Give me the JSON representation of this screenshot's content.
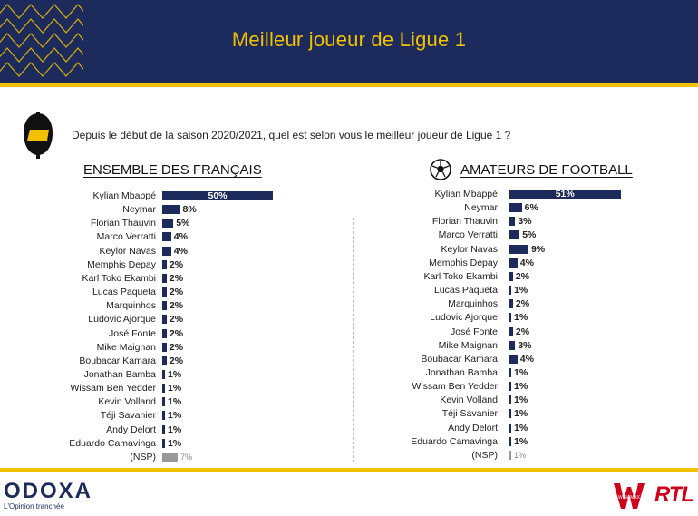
{
  "header": {
    "title": "Meilleur joueur de Ligue 1"
  },
  "question": "Depuis le début de la saison 2020/2021, quel est selon vous le meilleur joueur de Ligue 1 ?",
  "footer": {
    "brand": "ODOXA",
    "tagline": "L'Opinion tranchée",
    "partner1": "WINAMAX",
    "partner2": "RTL"
  },
  "colors": {
    "navy": "#1d2a5c",
    "yellow": "#f2c200",
    "nsp_gray": "#999999",
    "rtl_red": "#d0021b"
  },
  "chart_data": [
    {
      "type": "bar",
      "orientation": "horizontal",
      "title": "ENSEMBLE DES FRANÇAIS",
      "categories": [
        "Kylian Mbappé",
        "Neymar",
        "Florian Thauvin",
        "Marco Verratti",
        "Keylor Navas",
        "Memphis Depay",
        "Karl Toko Ekambi",
        "Lucas Paqueta",
        "Marquinhos",
        "Ludovic Ajorque",
        "José Fonte",
        "Mike Maignan",
        "Boubacar Kamara",
        "Jonathan Bamba",
        "Wissam Ben Yedder",
        "Kevin Volland",
        "Téji Savanier",
        "Andy Delort",
        "Eduardo Camavinga",
        "(NSP)"
      ],
      "values": [
        50,
        8,
        5,
        4,
        4,
        2,
        2,
        2,
        2,
        2,
        2,
        2,
        2,
        1,
        1,
        1,
        1,
        1,
        1,
        7
      ],
      "labels": [
        "50%",
        "8%",
        "5%",
        "4%",
        "4%",
        "2%",
        "2%",
        "2%",
        "2%",
        "2%",
        "2%",
        "2%",
        "2%",
        "1%",
        "1%",
        "1%",
        "1%",
        "1%",
        "1%",
        "7%"
      ],
      "unit": "%"
    },
    {
      "type": "bar",
      "orientation": "horizontal",
      "title": "AMATEURS DE FOOTBALL",
      "categories": [
        "Kylian Mbappé",
        "Neymar",
        "Florian Thauvin",
        "Marco Verratti",
        "Keylor Navas",
        "Memphis Depay",
        "Karl Toko Ekambi",
        "Lucas Paqueta",
        "Marquinhos",
        "Ludovic Ajorque",
        "José Fonte",
        "Mike Maignan",
        "Boubacar Kamara",
        "Jonathan Bamba",
        "Wissam Ben Yedder",
        "Kevin Volland",
        "Téji Savanier",
        "Andy Delort",
        "Eduardo Camavinga",
        "(NSP)"
      ],
      "values": [
        51,
        6,
        3,
        5,
        9,
        4,
        2,
        1,
        2,
        1,
        2,
        3,
        4,
        1,
        1,
        1,
        1,
        1,
        1,
        1
      ],
      "labels": [
        "51%",
        "6%",
        "3%",
        "5%",
        "9%",
        "4%",
        "2%",
        "1%",
        "2%",
        "1%",
        "2%",
        "3%",
        "4%",
        "1%",
        "1%",
        "1%",
        "1%",
        "1%",
        "1%",
        "1%"
      ],
      "unit": "%"
    }
  ]
}
